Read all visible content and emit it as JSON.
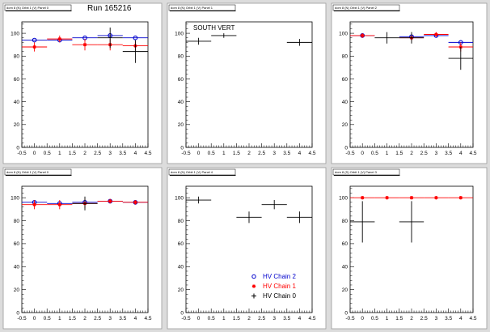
{
  "run_label": "Run 165216",
  "colors": {
    "canvas_bg": "#dcdcdc",
    "pad_bg": "#ffffff",
    "chain2": "#0000cc",
    "chain1": "#ff0000",
    "chain0": "#000000"
  },
  "chart_data": [
    {
      "type": "scatter",
      "pad_title": "dom 8 (N) Orbit 1 (V) Panel 0",
      "annotation": "",
      "xlim": [
        -0.5,
        4.5
      ],
      "ylim": [
        0,
        110
      ],
      "x_ticks": [
        "-0.5",
        "0",
        "0.5",
        "1",
        "1.5",
        "2",
        "2.5",
        "3",
        "3.5",
        "4",
        "4.5"
      ],
      "y_ticks": [
        "0",
        "20",
        "40",
        "60",
        "80",
        "100"
      ],
      "series": [
        {
          "name": "HV Chain 2",
          "marker": "circle",
          "x": [
            0,
            1,
            2,
            3,
            4
          ],
          "y": [
            94,
            94,
            96,
            98,
            96
          ],
          "yerr": [
            0,
            0,
            0,
            0,
            0
          ],
          "xerr": 0.5
        },
        {
          "name": "HV Chain 1",
          "marker": "star",
          "x": [
            0,
            1,
            2,
            3,
            4
          ],
          "y": [
            88,
            95,
            90,
            90,
            89
          ],
          "yerr": [
            4,
            3,
            5,
            5,
            4
          ],
          "xerr": 0.5
        },
        {
          "name": "HV Chain 0",
          "marker": "cross",
          "x": [
            3,
            4
          ],
          "y": [
            96,
            84
          ],
          "yerr": [
            9,
            10
          ],
          "xerr": 0.5
        }
      ]
    },
    {
      "type": "scatter",
      "pad_title": "dom 8 (N) Orbit 1 (V) Panel 1",
      "annotation": "SOUTH VERT",
      "xlim": [
        -0.5,
        4.5
      ],
      "ylim": [
        0,
        110
      ],
      "x_ticks": [
        "-0.5",
        "0",
        "0.5",
        "1",
        "1.5",
        "2",
        "2.5",
        "3",
        "3.5",
        "4",
        "4.5"
      ],
      "y_ticks": [
        "0",
        "20",
        "40",
        "60",
        "80",
        "100"
      ],
      "series": [
        {
          "name": "HV Chain 0",
          "marker": "cross",
          "x": [
            0,
            1,
            4
          ],
          "y": [
            93,
            98,
            92
          ],
          "yerr": [
            3,
            2,
            3
          ],
          "xerr": 0.5
        }
      ]
    },
    {
      "type": "scatter",
      "pad_title": "dom 8 (N) Orbit 1 (V) Panel 2",
      "annotation": "",
      "xlim": [
        -0.5,
        4.5
      ],
      "ylim": [
        0,
        110
      ],
      "x_ticks": [
        "-0.5",
        "0",
        "0.5",
        "1",
        "1.5",
        "2",
        "2.5",
        "3",
        "3.5",
        "4",
        "4.5"
      ],
      "y_ticks": [
        "0",
        "20",
        "40",
        "60",
        "80",
        "100"
      ],
      "series": [
        {
          "name": "HV Chain 2",
          "marker": "circle",
          "x": [
            0,
            2,
            3,
            4
          ],
          "y": [
            98,
            97,
            98,
            92
          ],
          "yerr": [
            0,
            0,
            0,
            0
          ],
          "xerr": 0.5
        },
        {
          "name": "HV Chain 1",
          "marker": "star",
          "x": [
            0,
            2,
            3,
            4
          ],
          "y": [
            98,
            96,
            99,
            88
          ],
          "yerr": [
            2,
            3,
            2,
            4
          ],
          "xerr": 0.5
        },
        {
          "name": "HV Chain 0",
          "marker": "cross",
          "x": [
            1,
            2,
            4
          ],
          "y": [
            96,
            96,
            78
          ],
          "yerr": [
            5,
            5,
            10
          ],
          "xerr": 0.5
        }
      ]
    },
    {
      "type": "scatter",
      "pad_title": "dom 8 (N) Orbit 1 (V) Panel 0",
      "annotation": "",
      "xlim": [
        -0.5,
        4.5
      ],
      "ylim": [
        0,
        110
      ],
      "x_ticks": [
        "-0.5",
        "0",
        "0.5",
        "1",
        "1.5",
        "2",
        "2.5",
        "3",
        "3.5",
        "4",
        "4.5"
      ],
      "y_ticks": [
        "0",
        "20",
        "40",
        "60",
        "80",
        "100"
      ],
      "series": [
        {
          "name": "HV Chain 2",
          "marker": "circle",
          "x": [
            0,
            1,
            2,
            3,
            4
          ],
          "y": [
            96,
            95,
            96,
            97,
            96
          ],
          "yerr": [
            0,
            0,
            0,
            0,
            0
          ],
          "xerr": 0.5
        },
        {
          "name": "HV Chain 1",
          "marker": "star",
          "x": [
            0,
            1,
            2,
            3,
            4
          ],
          "y": [
            94,
            94,
            95,
            97,
            96
          ],
          "yerr": [
            4,
            4,
            4,
            2,
            2
          ],
          "xerr": 0.5
        },
        {
          "name": "HV Chain 0",
          "marker": "cross",
          "x": [
            2
          ],
          "y": [
            95
          ],
          "yerr": [
            6
          ],
          "xerr": 0.5
        }
      ]
    },
    {
      "type": "scatter",
      "pad_title": "dom 8 (N) Orbit 1 (V) Panel 4",
      "annotation": "",
      "xlim": [
        -0.5,
        4.5
      ],
      "ylim": [
        0,
        110
      ],
      "x_ticks": [
        "-0.5",
        "0",
        "0.5",
        "1",
        "1.5",
        "2",
        "2.5",
        "3",
        "3.5",
        "4",
        "4.5"
      ],
      "y_ticks": [
        "0",
        "20",
        "40",
        "60",
        "80",
        "100"
      ],
      "legend": [
        {
          "label": "HV Chain 2",
          "marker": "circle"
        },
        {
          "label": "HV Chain 1",
          "marker": "star"
        },
        {
          "label": "HV Chain 0",
          "marker": "cross"
        }
      ],
      "series": [
        {
          "name": "HV Chain 0",
          "marker": "cross",
          "x": [
            0,
            2,
            3,
            4
          ],
          "y": [
            98,
            83,
            94,
            83
          ],
          "yerr": [
            3,
            5,
            4,
            5
          ],
          "xerr": 0.5
        }
      ]
    },
    {
      "type": "scatter",
      "pad_title": "dom 8 (S) Orbit 1 (V) Panel 3",
      "annotation": "",
      "xlim": [
        -0.5,
        4.5
      ],
      "ylim": [
        0,
        110
      ],
      "x_ticks": [
        "-0.5",
        "0",
        "0.5",
        "1",
        "1.5",
        "2",
        "2.5",
        "3",
        "3.5",
        "4",
        "4.5"
      ],
      "y_ticks": [
        "0",
        "20",
        "40",
        "60",
        "80",
        "100"
      ],
      "series": [
        {
          "name": "HV Chain 1",
          "marker": "star",
          "x": [
            0,
            1,
            2,
            3,
            4
          ],
          "y": [
            100,
            100,
            100,
            100,
            100
          ],
          "yerr": [
            0,
            0,
            0,
            0,
            0
          ],
          "xerr": 0.5
        },
        {
          "name": "HV Chain 0",
          "marker": "cross",
          "x": [
            0,
            2
          ],
          "y": [
            79,
            79
          ],
          "yerr": [
            18,
            18
          ],
          "xerr": 0.5
        }
      ]
    }
  ]
}
